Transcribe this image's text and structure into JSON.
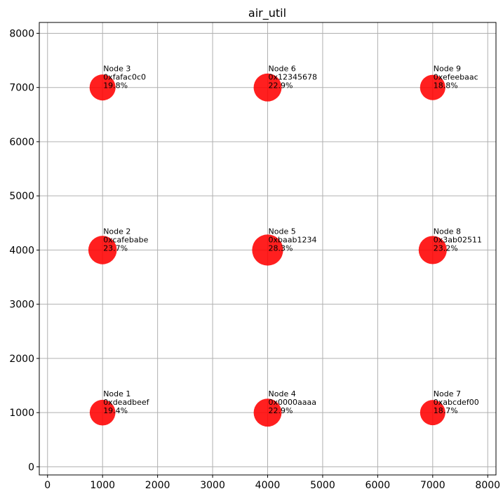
{
  "chart_data": {
    "type": "scatter",
    "title": "air_util",
    "xlabel": "",
    "ylabel": "",
    "xlim": [
      -150,
      8150
    ],
    "ylim": [
      -150,
      8200
    ],
    "xticks": [
      0,
      1000,
      2000,
      3000,
      4000,
      5000,
      6000,
      7000,
      8000
    ],
    "yticks": [
      0,
      1000,
      2000,
      3000,
      4000,
      5000,
      6000,
      7000,
      8000
    ],
    "grid": true,
    "marker_color": "#ff0000",
    "points": [
      {
        "name": "Node 1",
        "id": "0xdeadbeef",
        "util_label": "19.4%",
        "util": 19.4,
        "x": 1000,
        "y": 1000
      },
      {
        "name": "Node 2",
        "id": "0xcafebabe",
        "util_label": "23.7%",
        "util": 23.7,
        "x": 1000,
        "y": 4000
      },
      {
        "name": "Node 3",
        "id": "0xfafac0c0",
        "util_label": "19.8%",
        "util": 19.8,
        "x": 1000,
        "y": 7000
      },
      {
        "name": "Node 4",
        "id": "0x0000aaaa",
        "util_label": "22.9%",
        "util": 22.9,
        "x": 4000,
        "y": 1000
      },
      {
        "name": "Node 5",
        "id": "0xbaab1234",
        "util_label": "28.3%",
        "util": 28.3,
        "x": 4000,
        "y": 4000
      },
      {
        "name": "Node 6",
        "id": "0x12345678",
        "util_label": "22.9%",
        "util": 22.9,
        "x": 4000,
        "y": 7000
      },
      {
        "name": "Node 7",
        "id": "0xabcdef00",
        "util_label": "18.7%",
        "util": 18.7,
        "x": 7000,
        "y": 1000
      },
      {
        "name": "Node 8",
        "id": "0x3ab02511",
        "util_label": "23.2%",
        "util": 23.2,
        "x": 7000,
        "y": 4000
      },
      {
        "name": "Node 9",
        "id": "0xefeebaac",
        "util_label": "18.8%",
        "util": 18.8,
        "x": 7000,
        "y": 7000
      }
    ]
  }
}
